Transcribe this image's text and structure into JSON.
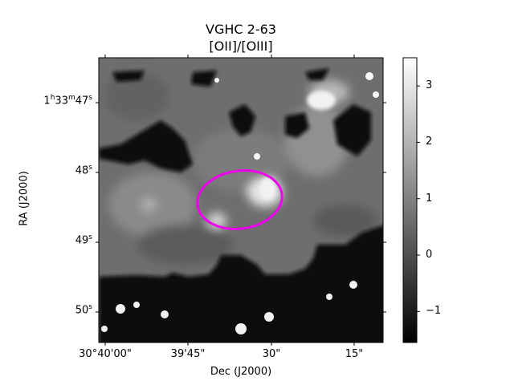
{
  "title": "VGHC 2-63",
  "subtitle": "[OII]/[OIII]",
  "xlabel": "Dec (J2000)",
  "ylabel": "RA (J2000)",
  "x_ticks": [
    "30°40'00\"",
    "39'45\"",
    "30\"",
    "15\""
  ],
  "y_ticks": [
    {
      "prefix": "1",
      "h": "h",
      "mid": "33",
      "m": "m",
      "sec": "47",
      "s": "s"
    },
    {
      "prefix": "",
      "h": "",
      "mid": "",
      "m": "",
      "sec": "48",
      "s": "s"
    },
    {
      "prefix": "",
      "h": "",
      "mid": "",
      "m": "",
      "sec": "49",
      "s": "s"
    },
    {
      "prefix": "",
      "h": "",
      "mid": "",
      "m": "",
      "sec": "50",
      "s": "s"
    }
  ],
  "colorbar": {
    "ticks": [
      "3",
      "2",
      "1",
      "0",
      "−1"
    ],
    "tick_values": [
      3,
      2,
      1,
      0,
      -1
    ],
    "range": [
      -1.55,
      3.5
    ],
    "colormap": "gray"
  },
  "aperture_color": "#ee00ee"
}
